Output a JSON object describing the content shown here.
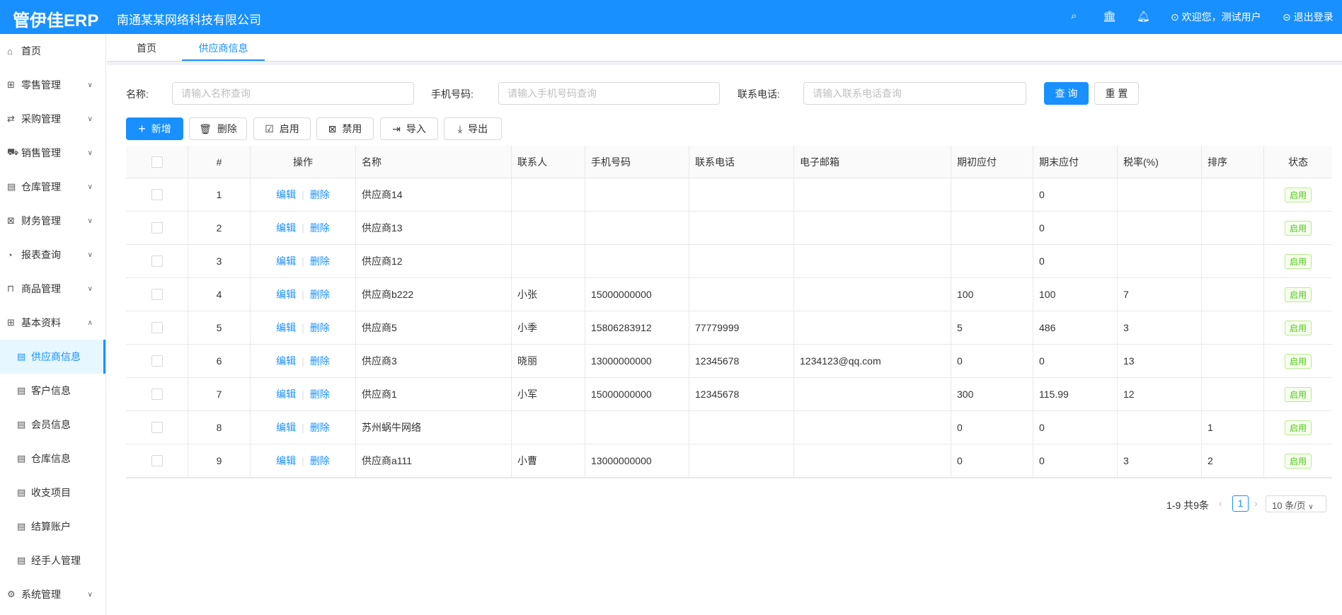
{
  "header": {
    "logo": "管伊佳ERP",
    "company": "南通某某网络科技有限公司",
    "welcome": "欢迎您，测试用户",
    "logout": "退出登录"
  },
  "sidebar": {
    "items": [
      {
        "label": "首页",
        "icon": "home-icon",
        "glyph": "⌂"
      },
      {
        "label": "零售管理",
        "icon": "gift-icon",
        "glyph": "⊞",
        "chevron": "down"
      },
      {
        "label": "采购管理",
        "icon": "swap-icon",
        "glyph": "⇄",
        "chevron": "down"
      },
      {
        "label": "销售管理",
        "icon": "cart-icon",
        "glyph": "⛟",
        "chevron": "down"
      },
      {
        "label": "仓库管理",
        "icon": "warehouse-icon",
        "glyph": "▤",
        "chevron": "down"
      },
      {
        "label": "财务管理",
        "icon": "account-book-icon",
        "glyph": "⊠",
        "chevron": "down"
      },
      {
        "label": "报表查询",
        "icon": "pie-chart-icon",
        "glyph": "◔",
        "chevron": "down"
      },
      {
        "label": "商品管理",
        "icon": "shopping-icon",
        "glyph": "⊓",
        "chevron": "down"
      },
      {
        "label": "基本资料",
        "icon": "appstore-icon",
        "glyph": "⊞",
        "chevron": "up",
        "active_parent": true
      },
      {
        "label": "供应商信息",
        "icon": "list-icon",
        "glyph": "▤",
        "sub": true,
        "active": true
      },
      {
        "label": "客户信息",
        "icon": "list-icon",
        "glyph": "▤",
        "sub": true
      },
      {
        "label": "会员信息",
        "icon": "list-icon",
        "glyph": "▤",
        "sub": true
      },
      {
        "label": "仓库信息",
        "icon": "list-icon",
        "glyph": "▤",
        "sub": true
      },
      {
        "label": "收支项目",
        "icon": "list-icon",
        "glyph": "▤",
        "sub": true
      },
      {
        "label": "结算账户",
        "icon": "list-icon",
        "glyph": "▤",
        "sub": true
      },
      {
        "label": "经手人管理",
        "icon": "list-icon",
        "glyph": "▤",
        "sub": true
      },
      {
        "label": "系统管理",
        "icon": "setting-icon",
        "glyph": "⚙",
        "chevron": "down"
      }
    ]
  },
  "tabs": [
    {
      "label": "首页"
    },
    {
      "label": "供应商信息",
      "active": true
    }
  ],
  "search": {
    "name_label": "名称:",
    "name_placeholder": "请输入名称查询",
    "phone_label": "手机号码:",
    "phone_placeholder": "请输入手机号码查询",
    "tel_label": "联系电话:",
    "tel_placeholder": "请输入联系电话查询",
    "query": "查 询",
    "reset": "重 置"
  },
  "toolbar": {
    "add": "新增",
    "delete": "删除",
    "enable": "启用",
    "disable": "禁用",
    "import": "导入",
    "export": "导出"
  },
  "table": {
    "columns": [
      "",
      "#",
      "操作",
      "名称",
      "联系人",
      "手机号码",
      "联系电话",
      "电子邮箱",
      "期初应付",
      "期末应付",
      "税率(%)",
      "排序",
      "状态"
    ],
    "edit": "编辑",
    "del": "删除",
    "rows": [
      [
        "",
        "1",
        "",
        "供应商14",
        "",
        "",
        "",
        "",
        "",
        "0",
        "",
        "",
        "启用"
      ],
      [
        "",
        "2",
        "",
        "供应商13",
        "",
        "",
        "",
        "",
        "",
        "0",
        "",
        "",
        "启用"
      ],
      [
        "",
        "3",
        "",
        "供应商12",
        "",
        "",
        "",
        "",
        "",
        "0",
        "",
        "",
        "启用"
      ],
      [
        "",
        "4",
        "",
        "供应商b222",
        "小张",
        "15000000000",
        "",
        "",
        "100",
        "100",
        "7",
        "",
        "启用"
      ],
      [
        "",
        "5",
        "",
        "供应商5",
        "小季",
        "15806283912",
        "77779999",
        "",
        "5",
        "486",
        "3",
        "",
        "启用"
      ],
      [
        "",
        "6",
        "",
        "供应商3",
        "晓丽",
        "13000000000",
        "12345678",
        "1234123@qq.com",
        "0",
        "0",
        "13",
        "",
        "启用"
      ],
      [
        "",
        "7",
        "",
        "供应商1",
        "小军",
        "15000000000",
        "12345678",
        "",
        "300",
        "115.99",
        "12",
        "",
        "启用"
      ],
      [
        "",
        "8",
        "",
        "苏州蜗牛网络",
        "",
        "",
        "",
        "",
        "0",
        "0",
        "",
        "1",
        "启用"
      ],
      [
        "",
        "9",
        "",
        "供应商a111",
        "小曹",
        "13000000000",
        "",
        "",
        "0",
        "0",
        "3",
        "2",
        "启用"
      ]
    ]
  },
  "pagination": {
    "summary": "1-9 共9条",
    "current": "1",
    "page_size": "10 条/页"
  },
  "colors": {
    "primary": "#1890ff",
    "status_green": "#52c41a"
  }
}
